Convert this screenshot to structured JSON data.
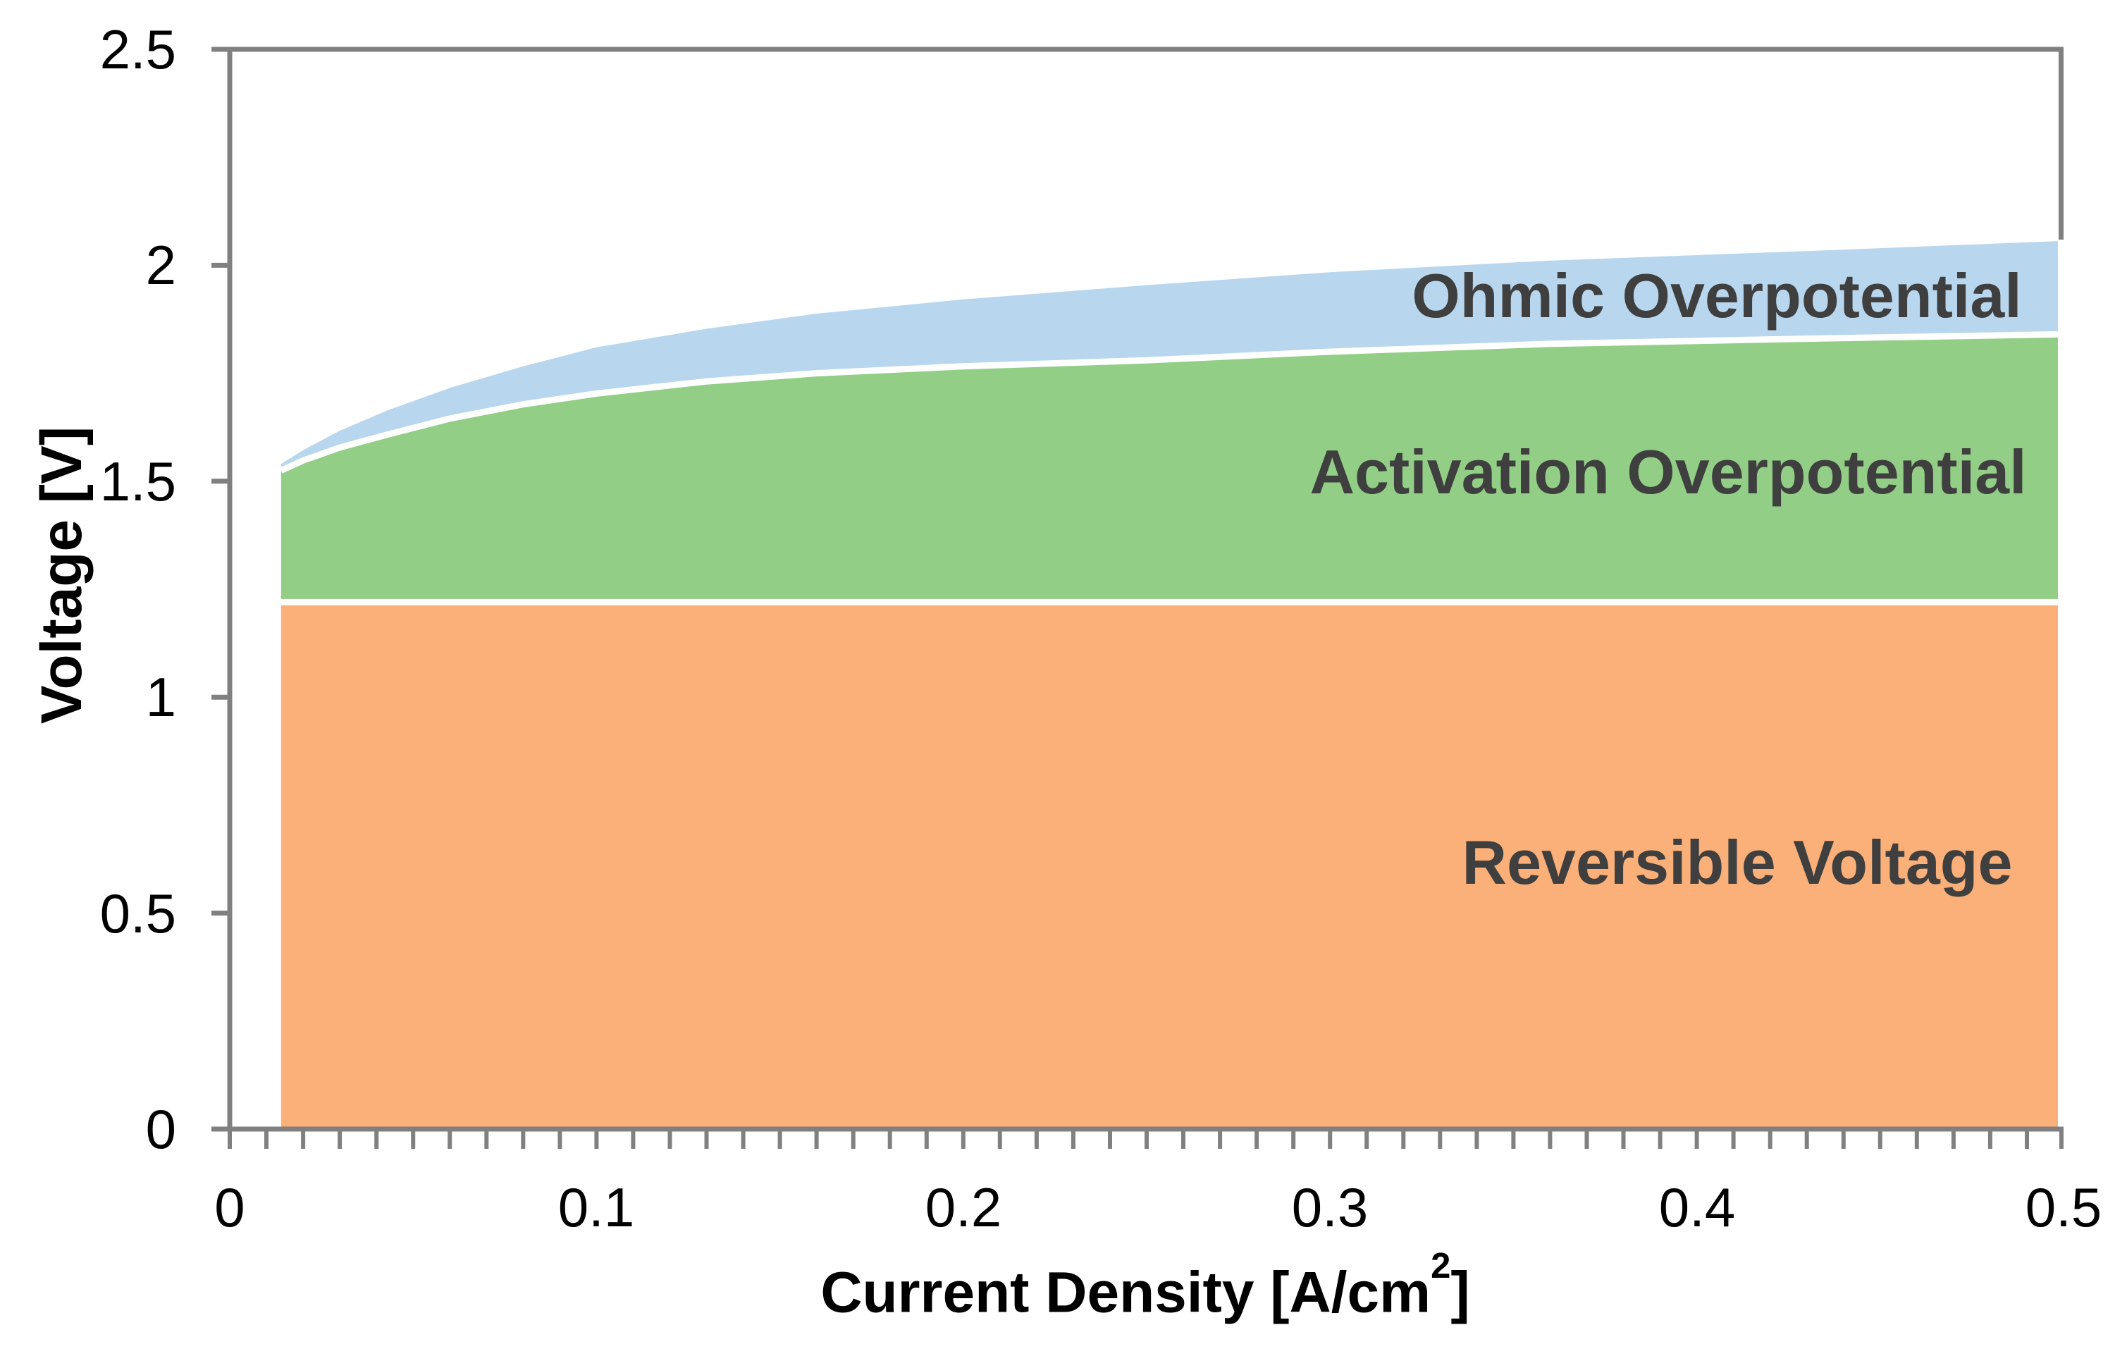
{
  "chart_data": {
    "type": "area",
    "stacked": true,
    "title": "",
    "xlabel": "Current Density [A/cm²]",
    "xlabel_parts": {
      "main": "Current Density [A/cm",
      "sup": "2",
      "end": "]"
    },
    "ylabel": "Voltage [V]",
    "xlim": [
      0,
      0.5
    ],
    "ylim": [
      0,
      2.5
    ],
    "x_tick_labels": [
      "0",
      "0.1",
      "0.2",
      "0.3",
      "0.4",
      "0.5"
    ],
    "x_ticks": [
      0,
      0.1,
      0.2,
      0.3,
      0.4,
      0.5
    ],
    "y_tick_labels": [
      "0",
      "0.5",
      "1",
      "1.5",
      "2",
      "2.5"
    ],
    "y_ticks": [
      0,
      0.5,
      1,
      1.5,
      2,
      2.5
    ],
    "x_minor_tick_step": 0.01,
    "x_data_start": 0.014,
    "grid": false,
    "legend": "labels drawn inside areas",
    "colors": {
      "axis": "#808080",
      "separator": "#FFFFFF",
      "area_label_text": "#3F3F3F",
      "tick_text": "#000000"
    },
    "series": [
      {
        "name": "Reversible Voltage",
        "color": "#FBB079",
        "description": "constant reversible voltage",
        "boundary": [
          [
            0.014,
            1.22
          ],
          [
            0.5,
            1.22
          ]
        ]
      },
      {
        "name": "Activation Overpotential",
        "color": "#92CE85",
        "description": "cumulative top = reversible + activation",
        "boundary": [
          [
            0.014,
            1.525
          ],
          [
            0.02,
            1.548
          ],
          [
            0.03,
            1.578
          ],
          [
            0.043,
            1.608
          ],
          [
            0.06,
            1.645
          ],
          [
            0.08,
            1.678
          ],
          [
            0.1,
            1.703
          ],
          [
            0.13,
            1.731
          ],
          [
            0.16,
            1.75
          ],
          [
            0.2,
            1.766
          ],
          [
            0.25,
            1.78
          ],
          [
            0.3,
            1.8
          ],
          [
            0.36,
            1.818
          ],
          [
            0.43,
            1.83
          ],
          [
            0.5,
            1.84
          ]
        ]
      },
      {
        "name": "Ohmic Overpotential",
        "color": "#B8D7EE",
        "description": "cumulative top = total cell voltage",
        "boundary": [
          [
            0.014,
            1.54
          ],
          [
            0.02,
            1.572
          ],
          [
            0.03,
            1.617
          ],
          [
            0.043,
            1.664
          ],
          [
            0.06,
            1.716
          ],
          [
            0.08,
            1.766
          ],
          [
            0.1,
            1.81
          ],
          [
            0.13,
            1.853
          ],
          [
            0.16,
            1.888
          ],
          [
            0.2,
            1.921
          ],
          [
            0.25,
            1.954
          ],
          [
            0.3,
            1.984
          ],
          [
            0.36,
            2.011
          ],
          [
            0.43,
            2.033
          ],
          [
            0.5,
            2.056
          ]
        ]
      }
    ]
  }
}
